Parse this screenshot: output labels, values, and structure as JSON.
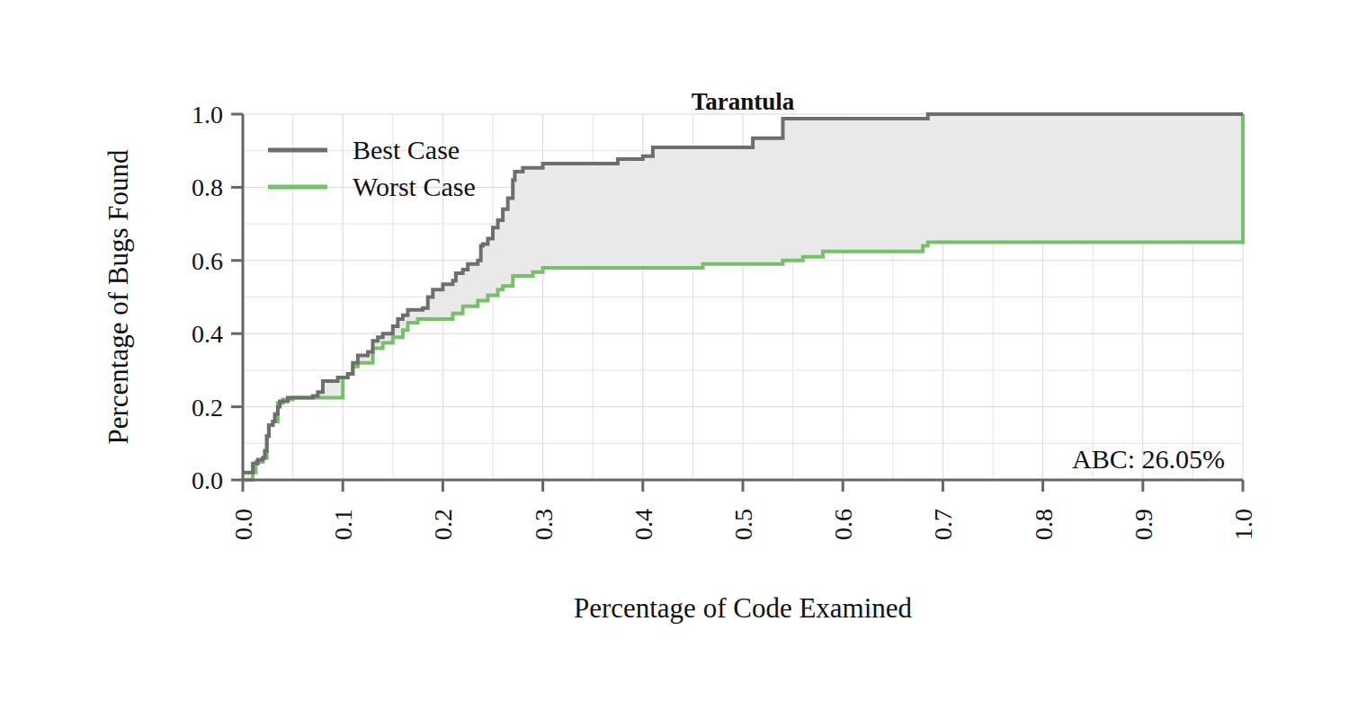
{
  "chart_data": {
    "type": "line",
    "line_style": "step",
    "title": "Tarantula",
    "x_label": "Percentage of Code Examined",
    "y_label": "Percentage of Bugs Found",
    "annotations": [
      "ABC: 26.05%"
    ],
    "legend": "top-left",
    "grid": true,
    "xlim": [
      0,
      1
    ],
    "ylim": [
      0,
      1
    ],
    "xticks": [
      {
        "value": 0,
        "label": "0.0"
      },
      {
        "value": 0.1,
        "label": "0.1"
      },
      {
        "value": 0.2,
        "label": "0.2"
      },
      {
        "value": 0.3,
        "label": "0.3"
      },
      {
        "value": 0.4,
        "label": "0.4"
      },
      {
        "value": 0.5,
        "label": "0.5"
      },
      {
        "value": 0.6,
        "label": "0.6"
      },
      {
        "value": 0.7,
        "label": "0.7"
      },
      {
        "value": 0.8,
        "label": "0.8"
      },
      {
        "value": 0.9,
        "label": "0.9"
      },
      {
        "value": 1,
        "label": "1.0"
      }
    ],
    "yticks": [
      {
        "value": 0,
        "label": "0.0"
      },
      {
        "value": 0.2,
        "label": "0.2"
      },
      {
        "value": 0.4,
        "label": "0.4"
      },
      {
        "value": 0.6,
        "label": "0.6"
      },
      {
        "value": 0.8,
        "label": "0.8"
      },
      {
        "value": 1,
        "label": "1.0"
      }
    ],
    "series": [
      {
        "name": "Best Case",
        "color": "#6e6e6e",
        "x": [
          0,
          0.008,
          0.01,
          0.015,
          0.02,
          0.022,
          0.024,
          0.026,
          0.03,
          0.032,
          0.035,
          0.037,
          0.045,
          0.07,
          0.075,
          0.08,
          0.095,
          0.105,
          0.11,
          0.115,
          0.125,
          0.13,
          0.135,
          0.14,
          0.15,
          0.155,
          0.16,
          0.165,
          0.18,
          0.185,
          0.19,
          0.2,
          0.21,
          0.213,
          0.22,
          0.225,
          0.235,
          0.238,
          0.24,
          0.245,
          0.25,
          0.255,
          0.26,
          0.265,
          0.27,
          0.272,
          0.28,
          0.3,
          0.37,
          0.375,
          0.4,
          0.41,
          0.505,
          0.51,
          0.535,
          0.54,
          0.685,
          1
        ],
        "values": [
          0.02,
          0.02,
          0.045,
          0.055,
          0.06,
          0.08,
          0.12,
          0.15,
          0.16,
          0.18,
          0.2,
          0.215,
          0.225,
          0.23,
          0.24,
          0.27,
          0.28,
          0.29,
          0.32,
          0.34,
          0.35,
          0.38,
          0.39,
          0.4,
          0.42,
          0.44,
          0.45,
          0.465,
          0.47,
          0.5,
          0.52,
          0.535,
          0.545,
          0.565,
          0.575,
          0.59,
          0.6,
          0.64,
          0.645,
          0.66,
          0.69,
          0.71,
          0.74,
          0.77,
          0.82,
          0.843,
          0.853,
          0.865,
          0.865,
          0.877,
          0.885,
          0.909,
          0.909,
          0.934,
          0.934,
          0.988,
          1,
          1
        ]
      },
      {
        "name": "Worst Case",
        "color": "#77c06a",
        "x": [
          0,
          0.008,
          0.01,
          0.013,
          0.02,
          0.024,
          0.026,
          0.03,
          0.035,
          0.04,
          0.05,
          0.1,
          0.105,
          0.11,
          0.115,
          0.13,
          0.14,
          0.15,
          0.16,
          0.165,
          0.175,
          0.21,
          0.22,
          0.235,
          0.245,
          0.255,
          0.26,
          0.27,
          0.29,
          0.3,
          0.46,
          0.54,
          0.56,
          0.58,
          0.68,
          0.685,
          1,
          1
        ],
        "values": [
          0,
          0,
          0.02,
          0.05,
          0.06,
          0.12,
          0.15,
          0.16,
          0.21,
          0.22,
          0.225,
          0.28,
          0.29,
          0.31,
          0.32,
          0.36,
          0.375,
          0.39,
          0.41,
          0.43,
          0.44,
          0.455,
          0.475,
          0.49,
          0.505,
          0.52,
          0.53,
          0.558,
          0.568,
          0.58,
          0.59,
          0.6,
          0.61,
          0.625,
          0.64,
          0.65,
          0.65,
          1
        ]
      }
    ]
  }
}
